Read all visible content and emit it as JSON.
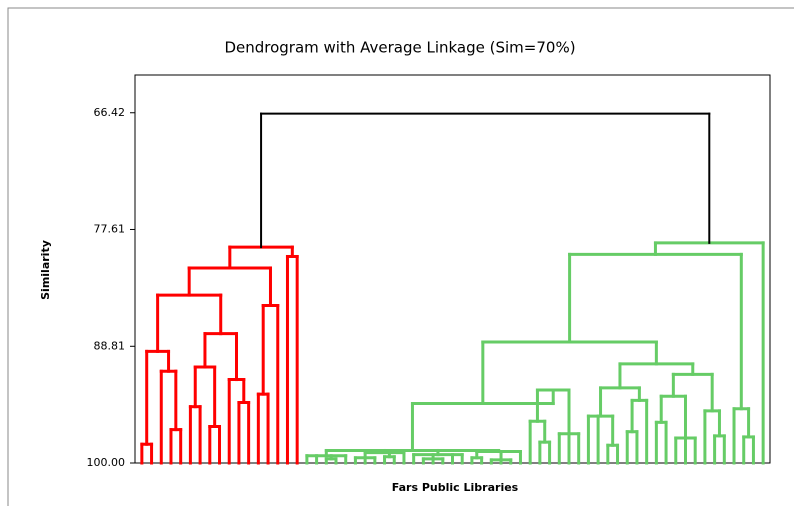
{
  "chart_data": {
    "type": "dendrogram",
    "title": "Dendrogram with Average Linkage (Sim=70%)",
    "x_label": "Fars Public Libraries",
    "y_label": "Similarity",
    "ylim": [
      100,
      62.8
    ],
    "yticks": [
      66.42,
      77.61,
      88.81,
      {
        "value": 100,
        "label": "100.00"
      }
    ],
    "color": "#000000",
    "tree": {
      "height": 66.5,
      "children": [
        {
          "color": "#ff0000",
          "height": 79.3,
          "children": [
            {
              "height": 81.3,
              "children": [
                {
                  "height": 83.9,
                  "children": [
                    {
                      "height": 89.3,
                      "children": [
                        {
                          "height": 98.2,
                          "children": [
                            100,
                            100
                          ]
                        },
                        {
                          "height": 91.2,
                          "children": [
                            100,
                            {
                              "height": 96.8,
                              "children": [
                                100,
                                100
                              ]
                            }
                          ]
                        }
                      ]
                    },
                    {
                      "height": 87.6,
                      "children": [
                        {
                          "height": 90.8,
                          "children": [
                            {
                              "height": 94.6,
                              "children": [
                                100,
                                100
                              ]
                            },
                            {
                              "height": 96.5,
                              "children": [
                                100,
                                100
                              ]
                            }
                          ]
                        },
                        {
                          "height": 92.0,
                          "children": [
                            100,
                            {
                              "height": 94.2,
                              "children": [
                                100,
                                100
                              ]
                            }
                          ]
                        }
                      ]
                    }
                  ]
                },
                {
                  "height": 84.9,
                  "children": [
                    {
                      "height": 93.4,
                      "children": [
                        100,
                        100
                      ]
                    },
                    100
                  ]
                }
              ]
            },
            {
              "height": 80.2,
              "children": [
                100,
                100
              ]
            }
          ]
        },
        {
          "color": "#66cc66",
          "height": 78.9,
          "children": [
            {
              "height": 80.0,
              "children": [
                {
                  "height": 88.4,
                  "children": [
                    {
                      "height": 94.3,
                      "children": [
                        {
                          "height": 98.8,
                          "children": [
                            {
                              "height": 99.3,
                              "children": [
                                100,
                                100,
                                {
                                  "height": 99.6,
                                  "children": [
                                    100,
                                    100
                                  ]
                                },
                                100
                              ]
                            },
                            {
                              "height": 99.0,
                              "children": [
                                {
                                  "height": 99.5,
                                  "children": [
                                    100,
                                    100,
                                    100
                                  ]
                                },
                                {
                                  "height": 99.4,
                                  "children": [
                                    100,
                                    100
                                  ]
                                },
                                100
                              ]
                            },
                            {
                              "height": 99.2,
                              "children": [
                                100,
                                {
                                  "height": 99.6,
                                  "children": [
                                    100,
                                    100,
                                    100
                                  ]
                                },
                                100,
                                100
                              ]
                            },
                            {
                              "height": 98.9,
                              "children": [
                                {
                                  "height": 99.5,
                                  "children": [
                                    100,
                                    100
                                  ]
                                },
                                {
                                  "height": 99.7,
                                  "children": [
                                    100,
                                    100,
                                    100
                                  ]
                                },
                                100
                              ]
                            }
                          ]
                        },
                        {
                          "height": 93.0,
                          "children": [
                            {
                              "height": 96.0,
                              "children": [
                                100,
                                {
                                  "height": 98.0,
                                  "children": [
                                    100,
                                    100
                                  ]
                                }
                              ]
                            },
                            {
                              "height": 97.2,
                              "children": [
                                100,
                                100,
                                100
                              ]
                            }
                          ]
                        }
                      ]
                    },
                    {
                      "height": 90.5,
                      "children": [
                        {
                          "height": 92.8,
                          "children": [
                            {
                              "height": 95.5,
                              "children": [
                                100,
                                100,
                                {
                                  "height": 98.3,
                                  "children": [
                                    100,
                                    100
                                  ]
                                }
                              ]
                            },
                            {
                              "height": 94.0,
                              "children": [
                                {
                                  "height": 97.0,
                                  "children": [
                                    100,
                                    100
                                  ]
                                },
                                100
                              ]
                            }
                          ]
                        },
                        {
                          "height": 91.5,
                          "children": [
                            {
                              "height": 93.6,
                              "children": [
                                {
                                  "height": 96.1,
                                  "children": [
                                    100,
                                    100
                                  ]
                                },
                                {
                                  "height": 97.6,
                                  "children": [
                                    100,
                                    100,
                                    100
                                  ]
                                }
                              ]
                            },
                            {
                              "height": 95.0,
                              "children": [
                                100,
                                {
                                  "height": 97.4,
                                  "children": [
                                    100,
                                    100
                                  ]
                                }
                              ]
                            }
                          ]
                        }
                      ]
                    }
                  ]
                },
                {
                  "height": 94.8,
                  "children": [
                    100,
                    {
                      "height": 97.5,
                      "children": [
                        100,
                        100
                      ]
                    }
                  ]
                }
              ]
            },
            100
          ]
        }
      ]
    }
  }
}
